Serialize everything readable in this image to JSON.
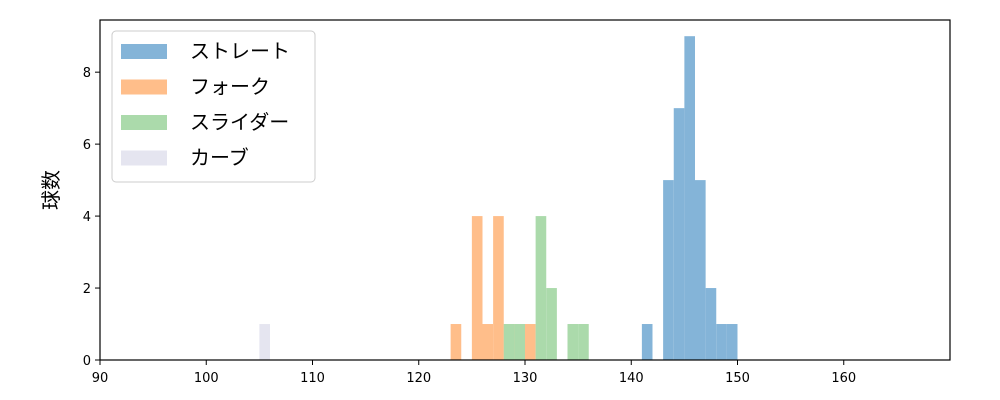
{
  "chart_data": {
    "type": "bar",
    "title": "",
    "xlabel": "",
    "ylabel": "球数",
    "xlim": [
      90,
      170
    ],
    "ylim": [
      0,
      9.45
    ],
    "xticks": [
      90,
      100,
      110,
      120,
      130,
      140,
      150,
      160
    ],
    "yticks": [
      0,
      2,
      4,
      6,
      8
    ],
    "grid": false,
    "legend_position": "top-left",
    "series": [
      {
        "name": "ストレート",
        "color": "#84b4d8",
        "bins": [
          {
            "x0": 141,
            "x1": 142,
            "count": 1
          },
          {
            "x0": 143,
            "x1": 144,
            "count": 5
          },
          {
            "x0": 144,
            "x1": 145,
            "count": 7
          },
          {
            "x0": 145,
            "x1": 146,
            "count": 9
          },
          {
            "x0": 146,
            "x1": 147,
            "count": 5
          },
          {
            "x0": 147,
            "x1": 148,
            "count": 2
          },
          {
            "x0": 148,
            "x1": 149,
            "count": 1
          },
          {
            "x0": 149,
            "x1": 150,
            "count": 1
          }
        ]
      },
      {
        "name": "フォーク",
        "color": "#ffbe8a",
        "bins": [
          {
            "x0": 123,
            "x1": 124,
            "count": 1
          },
          {
            "x0": 125,
            "x1": 126,
            "count": 4
          },
          {
            "x0": 126,
            "x1": 127,
            "count": 1
          },
          {
            "x0": 127,
            "x1": 128,
            "count": 4
          },
          {
            "x0": 128,
            "x1": 129,
            "count": 1
          },
          {
            "x0": 130,
            "x1": 131,
            "count": 1
          }
        ]
      },
      {
        "name": "スライダー",
        "color": "#abdaab",
        "bins": [
          {
            "x0": 128,
            "x1": 129,
            "count": 1
          },
          {
            "x0": 129,
            "x1": 130,
            "count": 1
          },
          {
            "x0": 131,
            "x1": 132,
            "count": 4
          },
          {
            "x0": 132,
            "x1": 133,
            "count": 2
          },
          {
            "x0": 134,
            "x1": 135,
            "count": 1
          },
          {
            "x0": 135,
            "x1": 136,
            "count": 1
          }
        ]
      },
      {
        "name": "カーブ",
        "color": "#e5e5f0",
        "bins": [
          {
            "x0": 105,
            "x1": 106,
            "count": 1
          }
        ]
      }
    ]
  }
}
